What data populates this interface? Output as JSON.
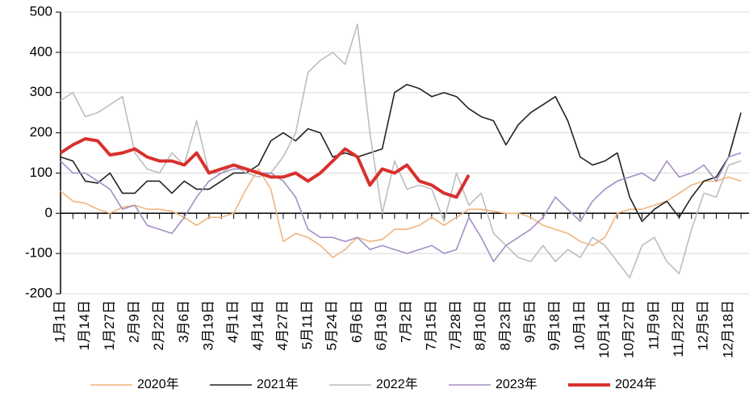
{
  "chart_data": {
    "type": "line",
    "categories": [
      "1月1日",
      null,
      "1月14日",
      null,
      "1月27日",
      null,
      "2月9日",
      null,
      "2月22日",
      null,
      "3月6日",
      null,
      "3月19日",
      null,
      "4月1日",
      null,
      "4月14日",
      null,
      "4月27日",
      null,
      "5月11日",
      null,
      "5月24日",
      null,
      "6月6日",
      null,
      "6月19日",
      null,
      "7月2日",
      null,
      "7月15日",
      null,
      "7月28日",
      null,
      "8月10日",
      null,
      "8月23日",
      null,
      "9月5日",
      null,
      "9月18日",
      null,
      "10月1日",
      null,
      "10月14日",
      null,
      "10月27日",
      null,
      "11月9日",
      null,
      "11月22日",
      null,
      "12月5日",
      null,
      "12月18日",
      null
    ],
    "series": [
      {
        "name": "2020年",
        "color": "#f0b47e",
        "width": 1.6,
        "values": [
          55,
          30,
          25,
          10,
          0,
          15,
          20,
          10,
          10,
          5,
          -10,
          -30,
          -10,
          -10,
          0,
          60,
          110,
          60,
          -70,
          -50,
          -60,
          -80,
          -110,
          -90,
          -60,
          -70,
          -65,
          -40,
          -40,
          -30,
          -10,
          -30,
          -10,
          10,
          10,
          5,
          0,
          0,
          -10,
          -30,
          -40,
          -50,
          -70,
          -80,
          -60,
          0,
          10,
          10,
          20,
          30,
          50,
          70,
          80,
          80,
          90,
          80
        ]
      },
      {
        "name": "2021年",
        "color": "#222222",
        "width": 1.6,
        "values": [
          140,
          130,
          80,
          75,
          100,
          50,
          50,
          80,
          80,
          50,
          80,
          60,
          60,
          80,
          100,
          100,
          120,
          180,
          200,
          180,
          210,
          200,
          140,
          150,
          140,
          150,
          160,
          300,
          320,
          310,
          290,
          300,
          290,
          260,
          240,
          230,
          170,
          220,
          250,
          270,
          290,
          230,
          140,
          120,
          130,
          150,
          40,
          -20,
          10,
          30,
          -10,
          40,
          80,
          90,
          140,
          250
        ]
      },
      {
        "name": "2022年",
        "color": "#bdbdbd",
        "width": 1.6,
        "values": [
          280,
          300,
          240,
          250,
          270,
          290,
          150,
          110,
          100,
          150,
          120,
          230,
          100,
          100,
          120,
          100,
          90,
          100,
          140,
          200,
          350,
          380,
          400,
          370,
          470,
          200,
          0,
          130,
          60,
          70,
          60,
          -20,
          100,
          20,
          50,
          -50,
          -80,
          -110,
          -120,
          -80,
          -120,
          -90,
          -110,
          -60,
          -80,
          -120,
          -160,
          -80,
          -60,
          -120,
          -150,
          -40,
          50,
          40,
          120,
          130
        ]
      },
      {
        "name": "2023年",
        "color": "#a58fc4",
        "width": 1.6,
        "values": [
          130,
          100,
          100,
          80,
          60,
          10,
          20,
          -30,
          -40,
          -50,
          -10,
          40,
          80,
          100,
          110,
          110,
          100,
          100,
          80,
          40,
          -40,
          -60,
          -60,
          -70,
          -60,
          -90,
          -80,
          -90,
          -100,
          -90,
          -80,
          -100,
          -90,
          -10,
          -60,
          -120,
          -80,
          -60,
          -40,
          -10,
          40,
          10,
          -20,
          30,
          60,
          80,
          90,
          100,
          80,
          130,
          90,
          100,
          120,
          80,
          140,
          150
        ]
      },
      {
        "name": "2024年",
        "color": "#d9302c",
        "width": 4,
        "values": [
          150,
          170,
          185,
          180,
          145,
          150,
          160,
          140,
          130,
          130,
          120,
          150,
          100,
          110,
          120,
          110,
          100,
          90,
          90,
          100,
          80,
          100,
          130,
          160,
          140,
          70,
          110,
          100,
          120,
          80,
          70,
          50,
          40,
          95,
          null,
          null,
          null,
          null,
          null,
          null,
          null,
          null,
          null,
          null,
          null,
          null,
          null,
          null,
          null,
          null,
          null,
          null,
          null,
          null,
          null,
          null
        ]
      }
    ],
    "ylim": [
      -200,
      500
    ],
    "yticks": [
      -200,
      -100,
      0,
      100,
      200,
      300,
      400,
      500
    ],
    "grid": true
  }
}
